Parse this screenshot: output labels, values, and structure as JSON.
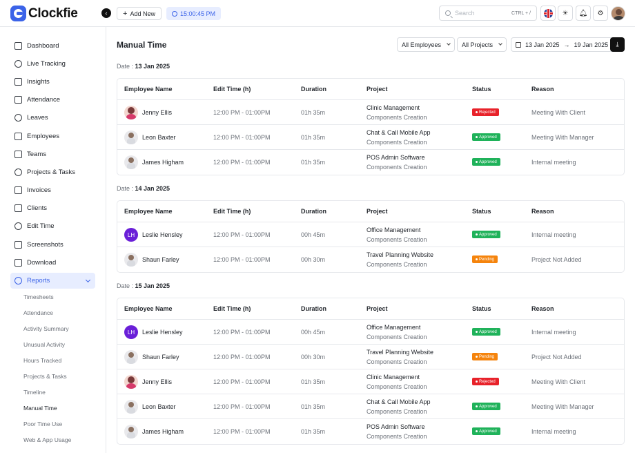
{
  "brand": {
    "name": "Clockfie",
    "accent": "#3b63e8"
  },
  "header": {
    "add_new": "Add New",
    "timer": "15:00:45 PM",
    "search_placeholder": "Search",
    "search_shortcut": "CTRL + /"
  },
  "sidebar": {
    "items": [
      {
        "label": "Dashboard",
        "icon": "dashboard-icon"
      },
      {
        "label": "Live Tracking",
        "icon": "live-tracking-icon"
      },
      {
        "label": "Insights",
        "icon": "insights-icon"
      },
      {
        "label": "Attendance",
        "icon": "calendar-icon"
      },
      {
        "label": "Leaves",
        "icon": "leaves-icon"
      },
      {
        "label": "Employees",
        "icon": "user-icon"
      },
      {
        "label": "Teams",
        "icon": "teams-icon"
      },
      {
        "label": "Projects & Tasks",
        "icon": "projects-icon"
      },
      {
        "label": "Invoices",
        "icon": "invoice-icon"
      },
      {
        "label": "Clients",
        "icon": "clients-icon"
      },
      {
        "label": "Edit Time",
        "icon": "clock-icon"
      },
      {
        "label": "Screenshots",
        "icon": "screenshot-icon"
      },
      {
        "label": "Download",
        "icon": "download-icon"
      },
      {
        "label": "Reports",
        "icon": "reports-icon"
      }
    ],
    "reports_sub": [
      "Timesheets",
      "Attendance",
      "Activity Summary",
      "Unusual Activity",
      "Hours Tracked",
      "Projects & Tasks",
      "Timeline",
      "Manual Time",
      "Poor Time Use",
      "Web & App Usage"
    ]
  },
  "main": {
    "title": "Manual Time",
    "filters": {
      "employees": "All Employees",
      "projects": "All Projects",
      "date_from": "13 Jan 2025",
      "date_to": "19 Jan 2025"
    },
    "columns": [
      "Employee  Name",
      "Edit Time  (h)",
      "Duration",
      "Project",
      "Status",
      "Reason"
    ],
    "date_prefix": "Date : ",
    "groups": [
      {
        "date": "13 Jan 2025",
        "rows": [
          {
            "name": "Jenny Ellis",
            "avatar": "photo-f",
            "time": "12:00 PM - 01:00PM",
            "duration": "01h 35m",
            "project": "Clinic Management",
            "sub": "Components Creation",
            "status": "Rejected",
            "reason": "Meeting With Client"
          },
          {
            "name": "Leon Baxter",
            "avatar": "photo-m",
            "time": "12:00 PM - 01:00PM",
            "duration": "01h 35m",
            "project": "Chat & Call Mobile App",
            "sub": "Components Creation",
            "status": "Approved",
            "reason": "Meeting With Manager"
          },
          {
            "name": "James Higham",
            "avatar": "photo-m",
            "time": "12:00 PM - 01:00PM",
            "duration": "01h 35m",
            "project": "POS Admin Software",
            "sub": "Components Creation",
            "status": "Approved",
            "reason": "Internal meeting"
          }
        ]
      },
      {
        "date": "14 Jan 2025",
        "rows": [
          {
            "name": "Leslie Hensley",
            "avatar": "initials",
            "initials": "LH",
            "time": "12:00 PM - 01:00PM",
            "duration": "00h 45m",
            "project": "Office Management",
            "sub": "Components Creation",
            "status": "Approved",
            "reason": "Internal meeting"
          },
          {
            "name": "Shaun Farley",
            "avatar": "photo-m",
            "time": "12:00 PM - 01:00PM",
            "duration": "00h 30m",
            "project": "Travel Planning Website",
            "sub": "Components Creation",
            "status": "Pending",
            "reason": "Project Not Added"
          }
        ]
      },
      {
        "date": "15 Jan 2025",
        "rows": [
          {
            "name": "Leslie Hensley",
            "avatar": "initials",
            "initials": "LH",
            "time": "12:00 PM - 01:00PM",
            "duration": "00h 45m",
            "project": "Office Management",
            "sub": "Components Creation",
            "status": "Approved",
            "reason": "Internal meeting"
          },
          {
            "name": "Shaun Farley",
            "avatar": "photo-m",
            "time": "12:00 PM - 01:00PM",
            "duration": "00h 30m",
            "project": "Travel Planning Website",
            "sub": "Components Creation",
            "status": "Pending",
            "reason": "Project Not Added"
          },
          {
            "name": "Jenny Ellis",
            "avatar": "photo-f",
            "time": "12:00 PM - 01:00PM",
            "duration": "01h 35m",
            "project": "Clinic Management",
            "sub": "Components Creation",
            "status": "Rejected",
            "reason": "Meeting With Client"
          },
          {
            "name": "Leon Baxter",
            "avatar": "photo-m",
            "time": "12:00 PM - 01:00PM",
            "duration": "01h 35m",
            "project": "Chat & Call Mobile App",
            "sub": "Components Creation",
            "status": "Approved",
            "reason": "Meeting With Manager"
          },
          {
            "name": "James Higham",
            "avatar": "photo-m",
            "time": "12:00 PM - 01:00PM",
            "duration": "01h 35m",
            "project": "POS Admin Software",
            "sub": "Components Creation",
            "status": "Approved",
            "reason": "Internal meeting"
          }
        ]
      }
    ]
  }
}
